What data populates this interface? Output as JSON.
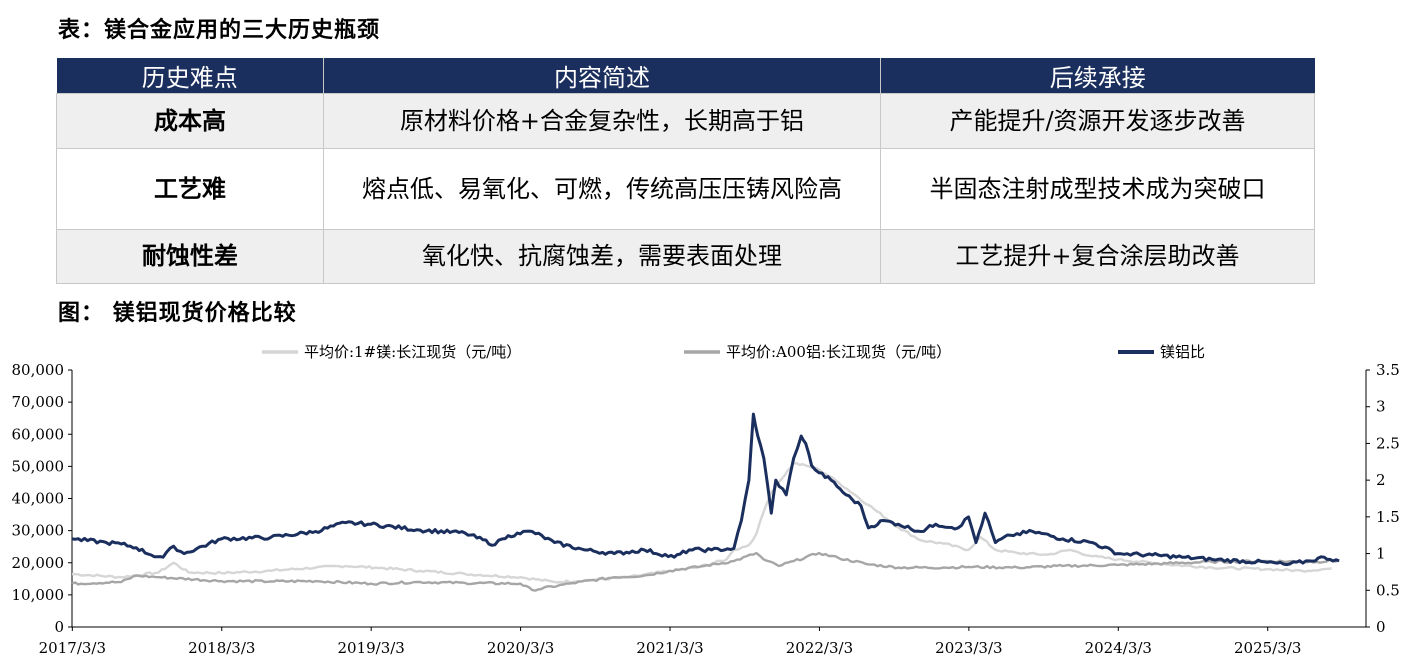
{
  "table_section": {
    "heading": "表：镁合金应用的三大历史瓶颈",
    "columns": [
      "历史难点",
      "内容简述",
      "后续承接"
    ],
    "rows": [
      {
        "issue": "成本高",
        "summary": "原材料价格+合金复杂性，长期高于铝",
        "followup": "产能提升/资源开发逐步改善"
      },
      {
        "issue": "工艺难",
        "summary": "熔点低、易氧化、可燃，传统高压压铸风险高",
        "followup": "半固态注射成型技术成为突破口"
      },
      {
        "issue": "耐蚀性差",
        "summary": "氧化快、抗腐蚀差，需要表面处理",
        "followup": "工艺提升+复合涂层助改善"
      }
    ]
  },
  "chart_section": {
    "heading": "图：  镁铝现货价格比较"
  },
  "chart_data": {
    "type": "line",
    "x_labels": [
      "2017/3/3",
      "2018/3/3",
      "2019/3/3",
      "2020/3/3",
      "2021/3/3",
      "2022/3/3",
      "2023/3/3",
      "2024/3/3",
      "2025/3/3"
    ],
    "y_left": {
      "range": [
        0,
        80000
      ],
      "ticks": [
        "0",
        "10,000",
        "20,000",
        "30,000",
        "40,000",
        "50,000",
        "60,000",
        "70,000",
        "80,000"
      ]
    },
    "y_right": {
      "range": [
        0,
        3.5
      ],
      "ticks": [
        "0",
        "0.5",
        "1",
        "1.5",
        "2",
        "2.5",
        "3",
        "3.5"
      ]
    },
    "grid": false,
    "legend_position": "top",
    "series": [
      {
        "name": "平均价:1#镁:长江现货（元/吨）",
        "axis": "left",
        "color": "#d6d6d6",
        "points": [
          [
            2017.17,
            16500
          ],
          [
            2017.5,
            15500
          ],
          [
            2017.75,
            17000
          ],
          [
            2017.85,
            20000
          ],
          [
            2017.95,
            17000
          ],
          [
            2018.17,
            16800
          ],
          [
            2018.5,
            17500
          ],
          [
            2018.8,
            18500
          ],
          [
            2019.0,
            19000
          ],
          [
            2019.2,
            18500
          ],
          [
            2019.5,
            17500
          ],
          [
            2019.8,
            16500
          ],
          [
            2020.17,
            15500
          ],
          [
            2020.4,
            14000
          ],
          [
            2020.6,
            14500
          ],
          [
            2020.9,
            15500
          ],
          [
            2021.17,
            17500
          ],
          [
            2021.35,
            18500
          ],
          [
            2021.55,
            21000
          ],
          [
            2021.6,
            24000
          ],
          [
            2021.7,
            25500
          ],
          [
            2021.75,
            29000
          ],
          [
            2021.8,
            36000
          ],
          [
            2021.85,
            42000
          ],
          [
            2021.9,
            45000
          ],
          [
            2022.0,
            51000
          ],
          [
            2022.1,
            50000
          ],
          [
            2022.17,
            49000
          ],
          [
            2022.3,
            45000
          ],
          [
            2022.5,
            38000
          ],
          [
            2022.7,
            31000
          ],
          [
            2022.85,
            27000
          ],
          [
            2023.0,
            26000
          ],
          [
            2023.17,
            24000
          ],
          [
            2023.25,
            28000
          ],
          [
            2023.35,
            24000
          ],
          [
            2023.5,
            23000
          ],
          [
            2023.7,
            22500
          ],
          [
            2023.85,
            24000
          ],
          [
            2024.0,
            22000
          ],
          [
            2024.17,
            21000
          ],
          [
            2024.5,
            19500
          ],
          [
            2024.8,
            18500
          ],
          [
            2025.17,
            18000
          ],
          [
            2025.4,
            17500
          ],
          [
            2025.6,
            18200
          ]
        ]
      },
      {
        "name": "平均价:A00铝:长江现货（元/吨）",
        "axis": "left",
        "color": "#a6a6a6",
        "points": [
          [
            2017.17,
            13500
          ],
          [
            2017.5,
            14000
          ],
          [
            2017.6,
            16000
          ],
          [
            2017.75,
            15500
          ],
          [
            2018.17,
            14300
          ],
          [
            2018.5,
            14200
          ],
          [
            2018.8,
            14300
          ],
          [
            2019.17,
            13500
          ],
          [
            2019.5,
            14000
          ],
          [
            2019.8,
            13700
          ],
          [
            2020.17,
            13500
          ],
          [
            2020.25,
            11500
          ],
          [
            2020.5,
            13500
          ],
          [
            2020.8,
            15500
          ],
          [
            2021.0,
            16000
          ],
          [
            2021.17,
            17500
          ],
          [
            2021.4,
            19000
          ],
          [
            2021.6,
            20500
          ],
          [
            2021.75,
            23000
          ],
          [
            2021.8,
            21000
          ],
          [
            2021.9,
            19000
          ],
          [
            2022.0,
            20500
          ],
          [
            2022.17,
            23000
          ],
          [
            2022.3,
            21500
          ],
          [
            2022.5,
            19500
          ],
          [
            2022.7,
            18500
          ],
          [
            2023.0,
            18500
          ],
          [
            2023.17,
            18700
          ],
          [
            2023.5,
            18500
          ],
          [
            2023.8,
            19000
          ],
          [
            2024.17,
            19300
          ],
          [
            2024.5,
            19800
          ],
          [
            2024.8,
            20300
          ],
          [
            2025.17,
            20500
          ],
          [
            2025.5,
            20300
          ],
          [
            2025.65,
            20700
          ]
        ]
      },
      {
        "name": "镁铝比",
        "axis": "right",
        "color": "#1b2f5e",
        "points": [
          [
            2017.17,
            1.2
          ],
          [
            2017.4,
            1.15
          ],
          [
            2017.5,
            1.13
          ],
          [
            2017.6,
            1.08
          ],
          [
            2017.7,
            0.98
          ],
          [
            2017.78,
            0.95
          ],
          [
            2017.85,
            1.1
          ],
          [
            2017.92,
            1.0
          ],
          [
            2018.17,
            1.2
          ],
          [
            2018.5,
            1.22
          ],
          [
            2018.8,
            1.3
          ],
          [
            2019.0,
            1.42
          ],
          [
            2019.17,
            1.4
          ],
          [
            2019.5,
            1.32
          ],
          [
            2019.8,
            1.28
          ],
          [
            2020.0,
            1.12
          ],
          [
            2020.05,
            1.2
          ],
          [
            2020.15,
            1.28
          ],
          [
            2020.25,
            1.3
          ],
          [
            2020.4,
            1.15
          ],
          [
            2020.6,
            1.05
          ],
          [
            2020.8,
            1.0
          ],
          [
            2021.0,
            1.05
          ],
          [
            2021.2,
            0.95
          ],
          [
            2021.3,
            1.05
          ],
          [
            2021.45,
            1.05
          ],
          [
            2021.6,
            1.07
          ],
          [
            2021.65,
            1.45
          ],
          [
            2021.7,
            2.0
          ],
          [
            2021.73,
            2.9
          ],
          [
            2021.76,
            2.6
          ],
          [
            2021.8,
            2.3
          ],
          [
            2021.85,
            1.55
          ],
          [
            2021.88,
            2.0
          ],
          [
            2021.95,
            1.8
          ],
          [
            2022.0,
            2.3
          ],
          [
            2022.05,
            2.6
          ],
          [
            2022.08,
            2.5
          ],
          [
            2022.12,
            2.2
          ],
          [
            2022.17,
            2.1
          ],
          [
            2022.25,
            2.0
          ],
          [
            2022.35,
            1.8
          ],
          [
            2022.45,
            1.65
          ],
          [
            2022.5,
            1.35
          ],
          [
            2022.6,
            1.45
          ],
          [
            2022.7,
            1.4
          ],
          [
            2022.85,
            1.3
          ],
          [
            2022.95,
            1.4
          ],
          [
            2023.1,
            1.35
          ],
          [
            2023.17,
            1.5
          ],
          [
            2023.22,
            1.15
          ],
          [
            2023.28,
            1.55
          ],
          [
            2023.35,
            1.15
          ],
          [
            2023.45,
            1.25
          ],
          [
            2023.6,
            1.3
          ],
          [
            2023.8,
            1.2
          ],
          [
            2024.0,
            1.15
          ],
          [
            2024.17,
            1.0
          ],
          [
            2024.4,
            0.98
          ],
          [
            2024.6,
            0.95
          ],
          [
            2024.8,
            0.92
          ],
          [
            2025.17,
            0.88
          ],
          [
            2025.3,
            0.85
          ],
          [
            2025.45,
            0.9
          ],
          [
            2025.55,
            0.95
          ],
          [
            2025.65,
            0.9
          ]
        ]
      }
    ]
  }
}
